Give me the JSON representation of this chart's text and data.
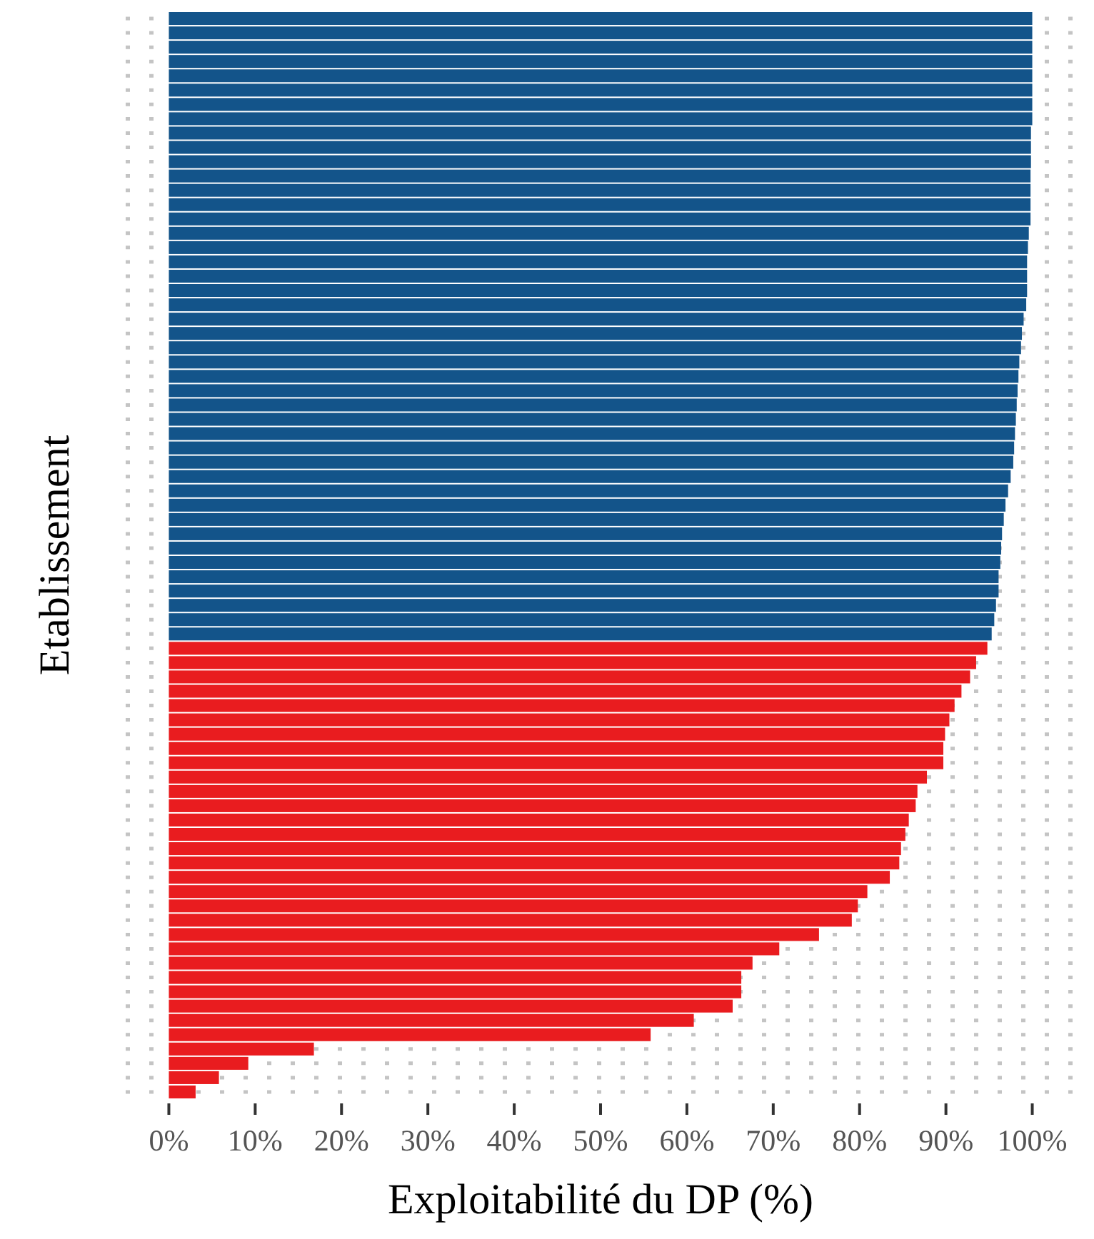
{
  "chart_data": {
    "type": "bar",
    "orientation": "horizontal",
    "xlabel": "Exploitabilité du DP (%)",
    "ylabel": "Etablissement",
    "categories": [
      null,
      null,
      null,
      null,
      null,
      null,
      null,
      null,
      null,
      null,
      null,
      null,
      null,
      null,
      null,
      null,
      null,
      null,
      null,
      null,
      null,
      null,
      null,
      null,
      null,
      null,
      null,
      null,
      null,
      null,
      null,
      null,
      null,
      null,
      null,
      null,
      null,
      null,
      null,
      null,
      null,
      null,
      null,
      null,
      null,
      null,
      null,
      null,
      null,
      null,
      null,
      null,
      null,
      null,
      null,
      null,
      null,
      null,
      null,
      null,
      null,
      null,
      null,
      null,
      null,
      null,
      null,
      null,
      null,
      null,
      null,
      null,
      null,
      null,
      null,
      null
    ],
    "values": [
      100,
      100,
      100,
      100,
      100,
      100,
      100,
      100,
      99.85,
      99.85,
      99.85,
      99.8,
      99.8,
      99.8,
      99.8,
      99.6,
      99.5,
      99.4,
      99.4,
      99.4,
      99.3,
      99.0,
      98.8,
      98.7,
      98.5,
      98.4,
      98.3,
      98.2,
      98.1,
      98.0,
      97.9,
      97.8,
      97.5,
      97.2,
      96.9,
      96.7,
      96.5,
      96.4,
      96.3,
      96.1,
      96.1,
      95.8,
      95.6,
      95.3,
      94.8,
      93.5,
      92.8,
      91.8,
      91.0,
      90.4,
      89.9,
      89.7,
      89.7,
      87.8,
      86.7,
      86.5,
      85.7,
      85.3,
      84.8,
      84.6,
      83.5,
      80.9,
      79.8,
      79.1,
      75.3,
      70.7,
      67.6,
      66.3,
      66.3,
      65.3,
      60.8,
      55.8,
      16.8,
      9.2,
      5.8,
      3.1
    ],
    "colors": [
      "#13548a",
      "#13548a",
      "#13548a",
      "#13548a",
      "#13548a",
      "#13548a",
      "#13548a",
      "#13548a",
      "#13548a",
      "#13548a",
      "#13548a",
      "#13548a",
      "#13548a",
      "#13548a",
      "#13548a",
      "#13548a",
      "#13548a",
      "#13548a",
      "#13548a",
      "#13548a",
      "#13548a",
      "#13548a",
      "#13548a",
      "#13548a",
      "#13548a",
      "#13548a",
      "#13548a",
      "#13548a",
      "#13548a",
      "#13548a",
      "#13548a",
      "#13548a",
      "#13548a",
      "#13548a",
      "#13548a",
      "#13548a",
      "#13548a",
      "#13548a",
      "#13548a",
      "#13548a",
      "#13548a",
      "#13548a",
      "#13548a",
      "#13548a",
      "#e91c1f",
      "#e91c1f",
      "#e91c1f",
      "#e91c1f",
      "#e91c1f",
      "#e91c1f",
      "#e91c1f",
      "#e91c1f",
      "#e91c1f",
      "#e91c1f",
      "#e91c1f",
      "#e91c1f",
      "#e91c1f",
      "#e91c1f",
      "#e91c1f",
      "#e91c1f",
      "#e91c1f",
      "#e91c1f",
      "#e91c1f",
      "#e91c1f",
      "#e91c1f",
      "#e91c1f",
      "#e91c1f",
      "#e91c1f",
      "#e91c1f",
      "#e91c1f",
      "#e91c1f",
      "#e91c1f",
      "#e91c1f",
      "#e91c1f",
      "#e91c1f",
      "#e91c1f"
    ],
    "xlim": [
      -5,
      105
    ],
    "xticks": [
      {
        "value": 0,
        "label": "0%"
      },
      {
        "value": 10,
        "label": "10%"
      },
      {
        "value": 20,
        "label": "20%"
      },
      {
        "value": 30,
        "label": "30%"
      },
      {
        "value": 40,
        "label": "40%"
      },
      {
        "value": 50,
        "label": "50%"
      },
      {
        "value": 60,
        "label": "60%"
      },
      {
        "value": 70,
        "label": "70%"
      },
      {
        "value": 80,
        "label": "80%"
      },
      {
        "value": 90,
        "label": "90%"
      },
      {
        "value": 100,
        "label": "100%"
      }
    ],
    "grid": "y",
    "tick_labels": "x"
  }
}
